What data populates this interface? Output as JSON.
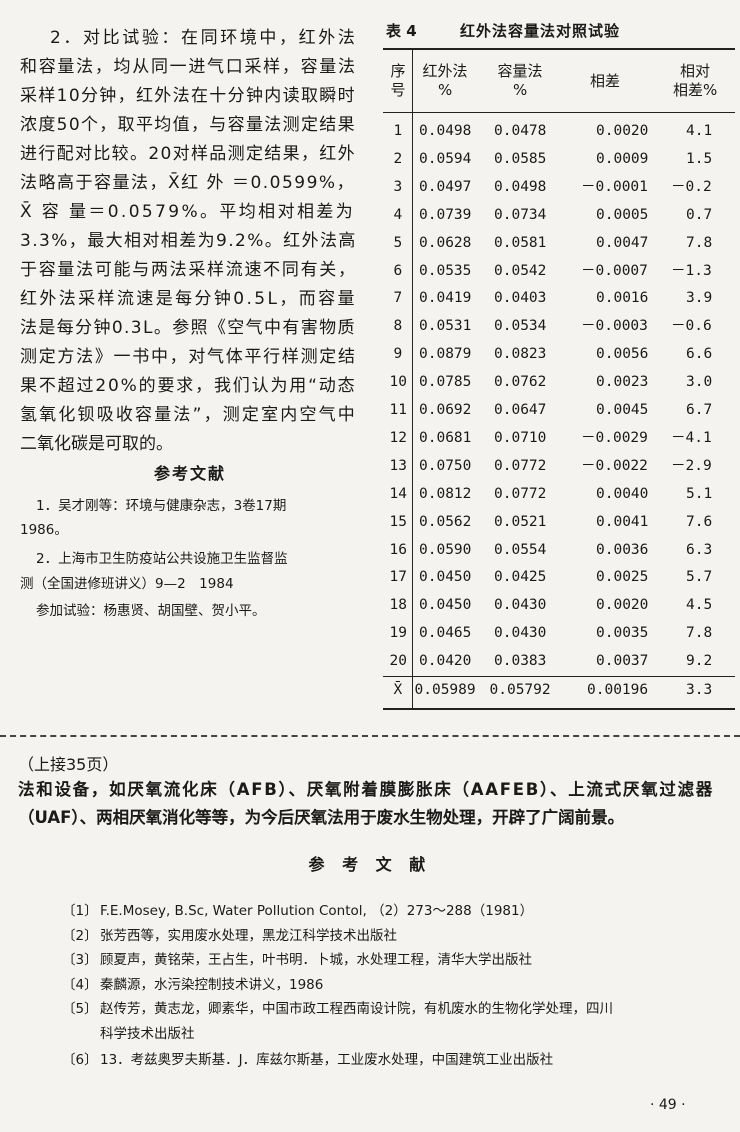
{
  "left_text": {
    "lines": [
      "2．对比试验：在同环境中，红外法",
      "和容量法，均从同一进气口采样，容量法",
      "采样10分钟，红外法在十分钟内读取瞬时",
      "浓度50个，取平均值，与容量法测定结果",
      "进行配对比较。20对样品测定结果，红外",
      "法略高于容量法，X̄红 外 ＝0.0599%，",
      "X̄ 容 量＝0.0579%。平均相对相差为",
      "3.3%，最大相对相差为9.2%。红外法高",
      "于容量法可能与两法采样流速不同有关，",
      "红外法采样流速是每分钟0.5L，而容量",
      "法是每分钟0.3L。参照《空气中有害物质",
      "测定方法》一书中，对气体平行样测定结",
      "果不超过20%的要求，我们认为用“动态",
      "氢氧化钡吸收容量法”，测定室内空气中",
      "二氧化碳是可取的。"
    ]
  },
  "left_references": {
    "heading": "参考文献",
    "lines": [
      "1．吴才刚等：环境与健康杂志，3卷17期",
      "1986。",
      "2．上海市卫生防疫站公共设施卫生监督监",
      "测（全国进修班讲义）9—2　1984",
      "参加试验：杨惠贤、胡国壁、贺小平。"
    ]
  },
  "table": {
    "label": "表 4",
    "title": "红外法容量法对照试验",
    "header": [
      [
        "序",
        "号"
      ],
      [
        "红外法",
        "%"
      ],
      [
        "容量法",
        "%"
      ],
      [
        "相差"
      ],
      [
        "相对",
        "相差%"
      ]
    ],
    "rows": [
      [
        "1",
        "0.0498",
        "0.0478",
        "0.0020",
        "4.1"
      ],
      [
        "2",
        "0.0594",
        "0.0585",
        "0.0009",
        "1.5"
      ],
      [
        "3",
        "0.0497",
        "0.0498",
        "－0.0001",
        "－0.2"
      ],
      [
        "4",
        "0.0739",
        "0.0734",
        "0.0005",
        "0.7"
      ],
      [
        "5",
        "0.0628",
        "0.0581",
        "0.0047",
        "7.8"
      ],
      [
        "6",
        "0.0535",
        "0.0542",
        "－0.0007",
        "－1.3"
      ],
      [
        "7",
        "0.0419",
        "0.0403",
        "0.0016",
        "3.9"
      ],
      [
        "8",
        "0.0531",
        "0.0534",
        "－0.0003",
        "－0.6"
      ],
      [
        "9",
        "0.0879",
        "0.0823",
        "0.0056",
        "6.6"
      ],
      [
        "10",
        "0.0785",
        "0.0762",
        "0.0023",
        "3.0"
      ],
      [
        "11",
        "0.0692",
        "0.0647",
        "0.0045",
        "6.7"
      ],
      [
        "12",
        "0.0681",
        "0.0710",
        "－0.0029",
        "－4.1"
      ],
      [
        "13",
        "0.0750",
        "0.0772",
        "－0.0022",
        "－2.9"
      ],
      [
        "14",
        "0.0812",
        "0.0772",
        "0.0040",
        "5.1"
      ],
      [
        "15",
        "0.0562",
        "0.0521",
        "0.0041",
        "7.6"
      ],
      [
        "16",
        "0.0590",
        "0.0554",
        "0.0036",
        "6.3"
      ],
      [
        "17",
        "0.0450",
        "0.0425",
        "0.0025",
        "5.7"
      ],
      [
        "18",
        "0.0450",
        "0.0430",
        "0.0020",
        "4.5"
      ],
      [
        "19",
        "0.0465",
        "0.0430",
        "0.0035",
        "7.8"
      ],
      [
        "20",
        "0.0420",
        "0.0383",
        "0.0037",
        "9.2"
      ],
      [
        "X̄",
        "0.05989",
        "0.05792",
        "0.00196",
        "3.3"
      ]
    ]
  },
  "bottom": {
    "continued": "（上接35页）",
    "paragraph_lines": [
      "法和设备，如厌氧流化床（AFB）、厌氧附着膜膨胀床（AAFEB）、上流式厌氧过滤器",
      "（UAF）、两相厌氧消化等等，为今后厌氧法用于废水生物处理，开辟了广阔前景。"
    ],
    "heading": "参 考 文 献",
    "references": [
      {
        "num": "〔1〕",
        "lines": [
          "F.E.Mosey, B.Sc, Water Pollution Contol, （2）273～288（1981）"
        ]
      },
      {
        "num": "〔2〕",
        "lines": [
          "张芳西等，实用废水处理，黑龙江科学技术出版社"
        ]
      },
      {
        "num": "〔3〕",
        "lines": [
          "顾夏声，黄铭荣，王占生，叶书明．卜城，水处理工程，清华大学出版社"
        ]
      },
      {
        "num": "〔4〕",
        "lines": [
          "秦麟源，水污染控制技术讲义，1986"
        ]
      },
      {
        "num": "〔5〕",
        "lines": [
          "赵传芳，黄志龙，卿素华，中国市政工程西南设计院，有机废水的生物化学处理，四川",
          "科学技术出版社"
        ]
      },
      {
        "num": "〔6〕",
        "lines": [
          "13．考兹奥罗夫斯基．J．库兹尔斯基，工业废水处理，中国建筑工业出版社"
        ]
      }
    ],
    "page_number": "· 49 ·"
  }
}
